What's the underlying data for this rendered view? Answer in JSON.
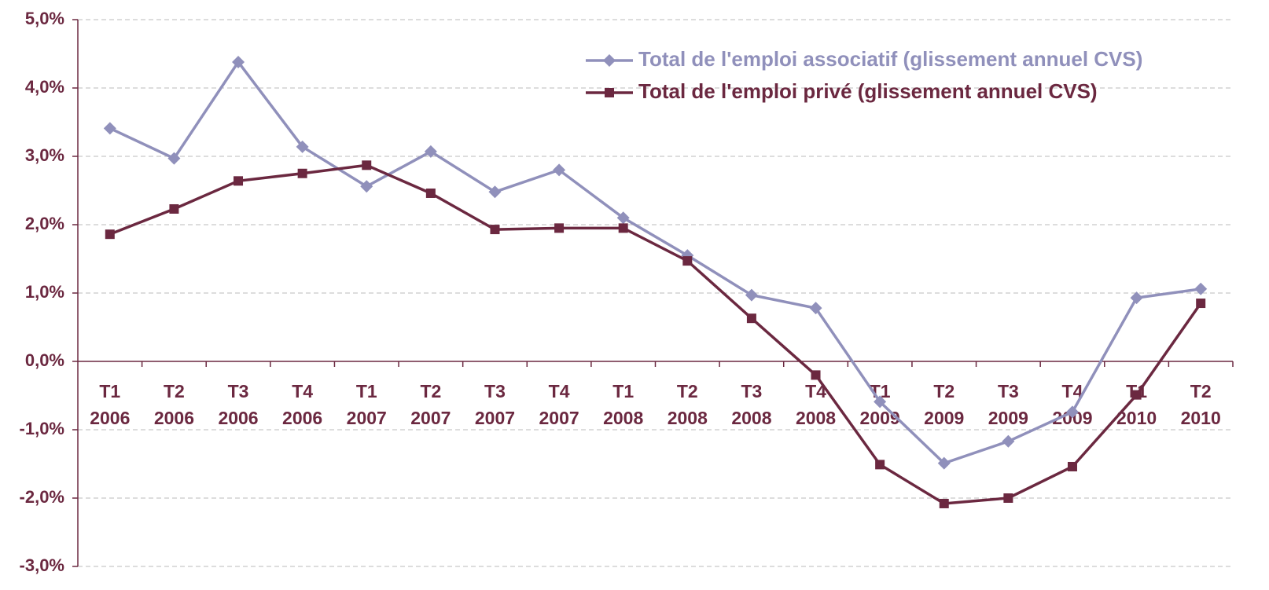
{
  "chart_data": {
    "type": "line",
    "categories": [
      [
        "T1",
        "2006"
      ],
      [
        "T2",
        "2006"
      ],
      [
        "T3",
        "2006"
      ],
      [
        "T4",
        "2006"
      ],
      [
        "T1",
        "2007"
      ],
      [
        "T2",
        "2007"
      ],
      [
        "T3",
        "2007"
      ],
      [
        "T4",
        "2007"
      ],
      [
        "T1",
        "2008"
      ],
      [
        "T2",
        "2008"
      ],
      [
        "T3",
        "2008"
      ],
      [
        "T4",
        "2008"
      ],
      [
        "T1",
        "2009"
      ],
      [
        "T2",
        "2009"
      ],
      [
        "T3",
        "2009"
      ],
      [
        "T4",
        "2009"
      ],
      [
        "T1",
        "2010"
      ],
      [
        "T2",
        "2010"
      ]
    ],
    "series": [
      {
        "name": "Total de l'emploi associatif (glissement annuel CVS)",
        "color": "#9090bb",
        "marker": "diamond",
        "values": [
          3.41,
          2.97,
          4.38,
          3.14,
          2.56,
          3.07,
          2.48,
          2.8,
          2.1,
          1.55,
          0.97,
          0.78,
          -0.59,
          -1.49,
          -1.17,
          -0.74,
          0.93,
          1.06
        ]
      },
      {
        "name": "Total de l'emploi privé (glissement annuel CVS)",
        "color": "#6b2840",
        "marker": "square",
        "values": [
          1.86,
          2.23,
          2.64,
          2.75,
          2.87,
          2.46,
          1.93,
          1.95,
          1.95,
          1.47,
          0.63,
          -0.2,
          -1.51,
          -2.08,
          -2.0,
          -1.54,
          -0.49,
          0.85
        ]
      }
    ],
    "ylim": [
      -3,
      5
    ],
    "yticks": [
      {
        "value": -3,
        "label": "-3,0%"
      },
      {
        "value": -2,
        "label": "-2,0%"
      },
      {
        "value": -1,
        "label": "-1,0%"
      },
      {
        "value": 0,
        "label": "0,0%"
      },
      {
        "value": 1,
        "label": "1,0%"
      },
      {
        "value": 2,
        "label": "2,0%"
      },
      {
        "value": 3,
        "label": "3,0%"
      },
      {
        "value": 4,
        "label": "4,0%"
      },
      {
        "value": 5,
        "label": "5,0%"
      }
    ],
    "grid": true,
    "legend": "top-right"
  }
}
